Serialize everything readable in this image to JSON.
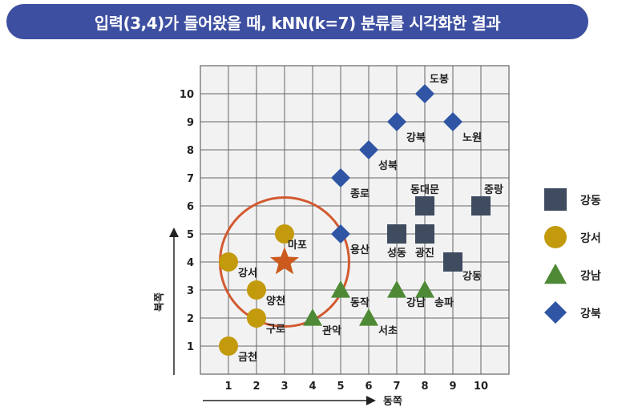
{
  "title": "입력(3,4)가 들어왔을 때, kNN(k=7) 분류를 시각화한 결과",
  "chart_data": {
    "type": "scatter",
    "xlabel": "동쪽",
    "ylabel": "북쪽",
    "xlim": [
      0,
      11
    ],
    "ylim": [
      0,
      11
    ],
    "x_ticks": [
      1,
      2,
      3,
      4,
      5,
      6,
      7,
      8,
      9,
      10
    ],
    "y_ticks": [
      1,
      2,
      3,
      4,
      5,
      6,
      7,
      8,
      9,
      10
    ],
    "grid": true,
    "legend_position": "right",
    "series": [
      {
        "name": "강동",
        "marker": "square",
        "color": "#3f4b5f",
        "points": [
          {
            "x": 7,
            "y": 5,
            "label": "성동"
          },
          {
            "x": 8,
            "y": 5,
            "label": "광진"
          },
          {
            "x": 8,
            "y": 6,
            "label": "동대문"
          },
          {
            "x": 10,
            "y": 6,
            "label": "중랑"
          },
          {
            "x": 9,
            "y": 4,
            "label": "강동"
          }
        ]
      },
      {
        "name": "강서",
        "marker": "circle",
        "color": "#c29a0c",
        "points": [
          {
            "x": 1,
            "y": 4,
            "label": "강서"
          },
          {
            "x": 2,
            "y": 3,
            "label": "양천"
          },
          {
            "x": 2,
            "y": 2,
            "label": "구로"
          },
          {
            "x": 1,
            "y": 1,
            "label": "금천"
          },
          {
            "x": 3,
            "y": 5,
            "label": "마포"
          }
        ]
      },
      {
        "name": "강남",
        "marker": "triangle",
        "color": "#4e8a36",
        "points": [
          {
            "x": 4,
            "y": 2,
            "label": "관악"
          },
          {
            "x": 5,
            "y": 3,
            "label": "동작"
          },
          {
            "x": 6,
            "y": 2,
            "label": "서초"
          },
          {
            "x": 7,
            "y": 3,
            "label": "강남"
          },
          {
            "x": 8,
            "y": 3,
            "label": "송파"
          }
        ]
      },
      {
        "name": "강북",
        "marker": "diamond",
        "color": "#2f55a4",
        "points": [
          {
            "x": 5,
            "y": 5,
            "label": "용산"
          },
          {
            "x": 5,
            "y": 7,
            "label": "종로"
          },
          {
            "x": 6,
            "y": 8,
            "label": "성북"
          },
          {
            "x": 7,
            "y": 9,
            "label": "강북"
          },
          {
            "x": 8,
            "y": 10,
            "label": "도봉"
          },
          {
            "x": 9,
            "y": 9,
            "label": "노원"
          }
        ]
      }
    ],
    "query_point": {
      "x": 3,
      "y": 4,
      "marker": "star",
      "color": "#cc5a1e"
    },
    "neighborhood_circle": {
      "center_x": 3,
      "center_y": 4,
      "radius": 2.3,
      "color": "#d25a30"
    }
  }
}
